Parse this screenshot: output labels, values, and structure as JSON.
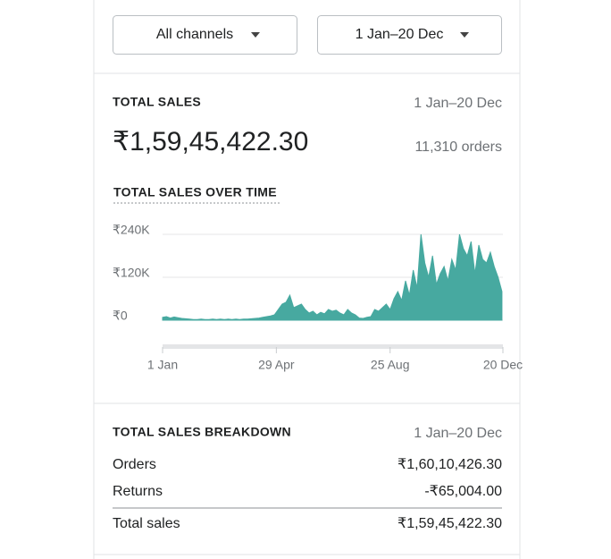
{
  "filters": {
    "channel": "All channels",
    "date_range": "1 Jan–20 Dec"
  },
  "summary": {
    "title": "TOTAL SALES",
    "date_range": "1 Jan–20 Dec",
    "amount": "₹1,59,45,422.30",
    "orders": "11,310 orders"
  },
  "chart_data": {
    "type": "area",
    "title": "TOTAL SALES OVER TIME",
    "color": "#47a9a0",
    "grid": true,
    "x": [
      0,
      4,
      8,
      12,
      16,
      20,
      24,
      28,
      32,
      36,
      40,
      44,
      48,
      52,
      56,
      60,
      64,
      68,
      72,
      76,
      80,
      84,
      88,
      92,
      96,
      100,
      104,
      108,
      112,
      116,
      120,
      124,
      128,
      132,
      136,
      140,
      144,
      148,
      152,
      156,
      160,
      164,
      168,
      172,
      176,
      180,
      184,
      188,
      192,
      196,
      200,
      204,
      208,
      212,
      216,
      220,
      224,
      228,
      232,
      236,
      240,
      244,
      248,
      252,
      256,
      260,
      264,
      268,
      272,
      276,
      280,
      284,
      288,
      292,
      296,
      300,
      304,
      308,
      312,
      316,
      320,
      324,
      328,
      332,
      336,
      340,
      344,
      348,
      352
    ],
    "values": [
      8000,
      10000,
      6000,
      9000,
      7000,
      5000,
      4000,
      3000,
      2000,
      2000,
      3000,
      2000,
      2000,
      3000,
      2000,
      3000,
      2000,
      3000,
      2000,
      3000,
      2000,
      3000,
      3000,
      4000,
      5000,
      6000,
      8000,
      10000,
      12000,
      15000,
      30000,
      45000,
      50000,
      70000,
      35000,
      40000,
      45000,
      30000,
      20000,
      25000,
      15000,
      22000,
      18000,
      30000,
      25000,
      28000,
      20000,
      15000,
      30000,
      20000,
      15000,
      6000,
      5000,
      8000,
      10000,
      30000,
      25000,
      35000,
      45000,
      30000,
      60000,
      80000,
      55000,
      110000,
      70000,
      140000,
      90000,
      240000,
      160000,
      120000,
      180000,
      100000,
      130000,
      150000,
      110000,
      170000,
      140000,
      240000,
      200000,
      180000,
      220000,
      130000,
      210000,
      170000,
      160000,
      190000,
      150000,
      120000,
      80000
    ],
    "xlim": [
      0,
      353
    ],
    "xticks": [
      {
        "value": 0,
        "label": "1 Jan"
      },
      {
        "value": 118,
        "label": "29 Apr"
      },
      {
        "value": 236,
        "label": "25 Aug"
      },
      {
        "value": 353,
        "label": "20 Dec"
      }
    ],
    "ylim": [
      0,
      250000
    ],
    "yticks": [
      {
        "value": 0,
        "label": "₹0"
      },
      {
        "value": 120000,
        "label": "₹120K"
      },
      {
        "value": 240000,
        "label": "₹240K"
      }
    ]
  },
  "breakdown": {
    "title": "TOTAL SALES BREAKDOWN",
    "date_range": "1 Jan–20 Dec",
    "rows": [
      [
        "Orders",
        "₹1,60,10,426.30"
      ],
      [
        "Returns",
        "-₹65,004.00"
      ],
      [
        "Total sales",
        "₹1,59,45,422.30"
      ]
    ]
  }
}
